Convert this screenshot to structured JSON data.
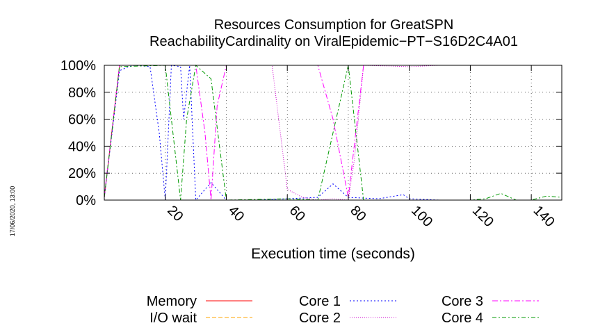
{
  "chart_data": {
    "type": "line",
    "title": "Resources Consumption for GreatSPN",
    "subtitle": "ReachabilityCardinality on ViralEpidemic−PT−S16D2C4A01",
    "xlabel": "Execution time (seconds)",
    "ylabel": "",
    "xlim": [
      0,
      150
    ],
    "ylim": [
      0,
      100
    ],
    "x_ticks": [
      20,
      40,
      60,
      80,
      100,
      120,
      140
    ],
    "x_tick_labels": [
      "20",
      "40",
      "60",
      "80",
      "100",
      "120",
      "140"
    ],
    "y_ticks": [
      0,
      20,
      40,
      60,
      80,
      100
    ],
    "y_tick_labels": [
      "0%",
      "20%",
      "40%",
      "60%",
      "80%",
      "100%"
    ],
    "grid": true,
    "legend_position": "bottom",
    "timestamp": "17/06/2020, 13:00",
    "series": [
      {
        "name": "Memory",
        "color": "#ff0000",
        "dash": "",
        "points": [
          [
            0,
            2
          ],
          [
            5,
            100
          ],
          [
            150,
            100
          ]
        ]
      },
      {
        "name": "I/O wait",
        "color": "#ffa500",
        "dash": "6,3",
        "points": [
          [
            0,
            0
          ],
          [
            150,
            0
          ]
        ]
      },
      {
        "name": "Core 1",
        "color": "#0000ff",
        "dash": "2,3",
        "points": [
          [
            0,
            2
          ],
          [
            5,
            96
          ],
          [
            8,
            99
          ],
          [
            10,
            100
          ],
          [
            15,
            99
          ],
          [
            18,
            50
          ],
          [
            20,
            0
          ],
          [
            22,
            100
          ],
          [
            25,
            99
          ],
          [
            26,
            60
          ],
          [
            28,
            100
          ],
          [
            30,
            0
          ],
          [
            35,
            13
          ],
          [
            40,
            0
          ],
          [
            50,
            0
          ],
          [
            60,
            1
          ],
          [
            70,
            2
          ],
          [
            75,
            12
          ],
          [
            80,
            2
          ],
          [
            90,
            1
          ],
          [
            98,
            4
          ],
          [
            100,
            1
          ],
          [
            110,
            0
          ],
          [
            150,
            0
          ]
        ]
      },
      {
        "name": "Core 2",
        "color": "#cc00cc",
        "dash": "1,2",
        "points": [
          [
            0,
            1
          ],
          [
            5,
            100
          ],
          [
            30,
            100
          ],
          [
            35,
            100
          ],
          [
            40,
            100
          ],
          [
            55,
            100
          ],
          [
            60,
            8
          ],
          [
            65,
            2
          ],
          [
            70,
            0
          ],
          [
            75,
            1
          ],
          [
            80,
            0
          ],
          [
            82,
            30
          ],
          [
            85,
            100
          ],
          [
            100,
            99
          ],
          [
            110,
            100
          ],
          [
            150,
            100
          ]
        ]
      },
      {
        "name": "Core 3",
        "color": "#ff00ff",
        "dash": "8,3,2,3",
        "points": [
          [
            0,
            3
          ],
          [
            5,
            100
          ],
          [
            30,
            100
          ],
          [
            33,
            50
          ],
          [
            35,
            0
          ],
          [
            37,
            70
          ],
          [
            40,
            100
          ],
          [
            70,
            100
          ],
          [
            75,
            60
          ],
          [
            80,
            2
          ],
          [
            85,
            100
          ],
          [
            150,
            100
          ]
        ]
      },
      {
        "name": "Core 4",
        "color": "#009900",
        "dash": "6,3,2,3",
        "points": [
          [
            0,
            2
          ],
          [
            5,
            99
          ],
          [
            20,
            100
          ],
          [
            22,
            60
          ],
          [
            25,
            0
          ],
          [
            27,
            60
          ],
          [
            30,
            100
          ],
          [
            35,
            90
          ],
          [
            40,
            0
          ],
          [
            60,
            1
          ],
          [
            70,
            0
          ],
          [
            75,
            50
          ],
          [
            80,
            100
          ],
          [
            82,
            60
          ],
          [
            85,
            0
          ],
          [
            100,
            0
          ],
          [
            120,
            0
          ],
          [
            125,
            1
          ],
          [
            130,
            5
          ],
          [
            135,
            0
          ],
          [
            140,
            0
          ],
          [
            145,
            3
          ],
          [
            150,
            2
          ]
        ]
      }
    ]
  }
}
